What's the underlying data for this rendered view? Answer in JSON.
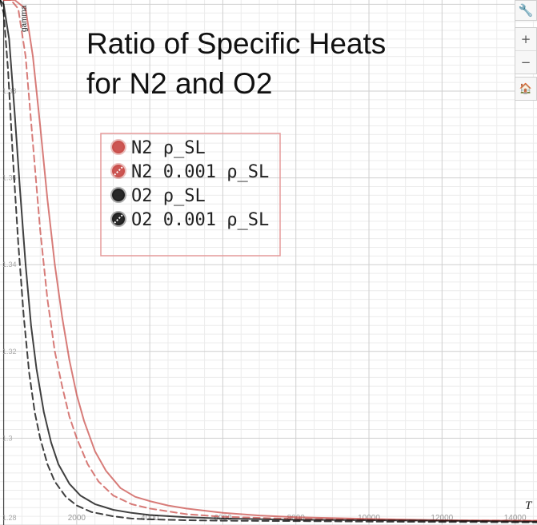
{
  "chart_data": {
    "type": "line",
    "title_lines": [
      "Ratio of Specific Heats",
      "for N2 and O2"
    ],
    "xlabel": "T",
    "ylabel": "gamma",
    "xlim": [
      -100,
      14600
    ],
    "ylim": [
      1.28,
      1.401
    ],
    "x_ticks": [
      {
        "v": 2000,
        "label": "2000"
      },
      {
        "v": 4000,
        "label": "4000"
      },
      {
        "v": 6000,
        "label": "6000"
      },
      {
        "v": 8000,
        "label": "8000"
      },
      {
        "v": 10000,
        "label": "10000"
      },
      {
        "v": 12000,
        "label": "12000"
      },
      {
        "v": 14000,
        "label": "14000"
      }
    ],
    "y_ticks": [
      {
        "v": 1.28,
        "label": "1.28"
      },
      {
        "v": 1.3,
        "label": "1.3"
      },
      {
        "v": 1.32,
        "label": "1.32"
      },
      {
        "v": 1.34,
        "label": "1.34"
      },
      {
        "v": 1.36,
        "label": "1.36"
      },
      {
        "v": 1.38,
        "label": "1.38"
      }
    ],
    "grid": true,
    "legend_position": "top-left",
    "series": [
      {
        "name": "N2 ρ_SL",
        "color": "#c74440",
        "dash": "solid",
        "x": [
          0,
          300,
          600,
          800,
          1000,
          1200,
          1400,
          1600,
          1800,
          2000,
          2200,
          2500,
          2800,
          3200,
          3600,
          4000,
          4500,
          5000,
          6000,
          7000,
          8000,
          10000,
          12000,
          14600
        ],
        "y": [
          1.401,
          1.401,
          1.399,
          1.388,
          1.372,
          1.355,
          1.34,
          1.328,
          1.318,
          1.31,
          1.304,
          1.297,
          1.2925,
          1.2885,
          1.2865,
          1.2855,
          1.2845,
          1.2838,
          1.2828,
          1.2822,
          1.2818,
          1.2814,
          1.2811,
          1.281
        ]
      },
      {
        "name": "N2 0.001 ρ_SL",
        "color": "#c74440",
        "dash": "dashed",
        "x": [
          0,
          200,
          400,
          600,
          800,
          1000,
          1200,
          1400,
          1600,
          1800,
          2000,
          2300,
          2600,
          3000,
          3500,
          4000,
          5000,
          6000,
          8000,
          10000,
          12000,
          14600
        ],
        "y": [
          1.401,
          1.401,
          1.399,
          1.388,
          1.368,
          1.348,
          1.332,
          1.32,
          1.312,
          1.305,
          1.3,
          1.294,
          1.29,
          1.2868,
          1.2848,
          1.2838,
          1.2825,
          1.2819,
          1.2814,
          1.2812,
          1.281,
          1.281
        ]
      },
      {
        "name": "O2 ρ_SL",
        "color": "#000000",
        "dash": "solid",
        "x": [
          -100,
          0,
          150,
          300,
          450,
          600,
          750,
          900,
          1100,
          1300,
          1500,
          1800,
          2100,
          2500,
          3000,
          3500,
          4000,
          5000,
          6000,
          8000,
          10000,
          12000,
          14600
        ],
        "y": [
          1.401,
          1.4,
          1.392,
          1.375,
          1.357,
          1.34,
          1.326,
          1.316,
          1.306,
          1.299,
          1.294,
          1.2895,
          1.2868,
          1.2848,
          1.2835,
          1.2828,
          1.2823,
          1.2818,
          1.2815,
          1.2812,
          1.2811,
          1.281,
          1.2808
        ]
      },
      {
        "name": "O2 0.001 ρ_SL",
        "color": "#000000",
        "dash": "dashed",
        "x": [
          -100,
          0,
          120,
          250,
          400,
          550,
          700,
          850,
          1000,
          1200,
          1400,
          1700,
          2000,
          2400,
          3000,
          3500,
          4000,
          5000,
          6000,
          8000,
          10000,
          12000,
          14600
        ],
        "y": [
          1.401,
          1.398,
          1.385,
          1.365,
          1.345,
          1.328,
          1.315,
          1.306,
          1.3,
          1.294,
          1.29,
          1.2865,
          1.2845,
          1.283,
          1.282,
          1.2815,
          1.2813,
          1.2811,
          1.281,
          1.2809,
          1.2808,
          1.2807,
          1.2806
        ]
      }
    ]
  },
  "controls": {
    "settings": "🔧",
    "zoom_in": "+",
    "zoom_out": "−",
    "home": "🏠"
  }
}
